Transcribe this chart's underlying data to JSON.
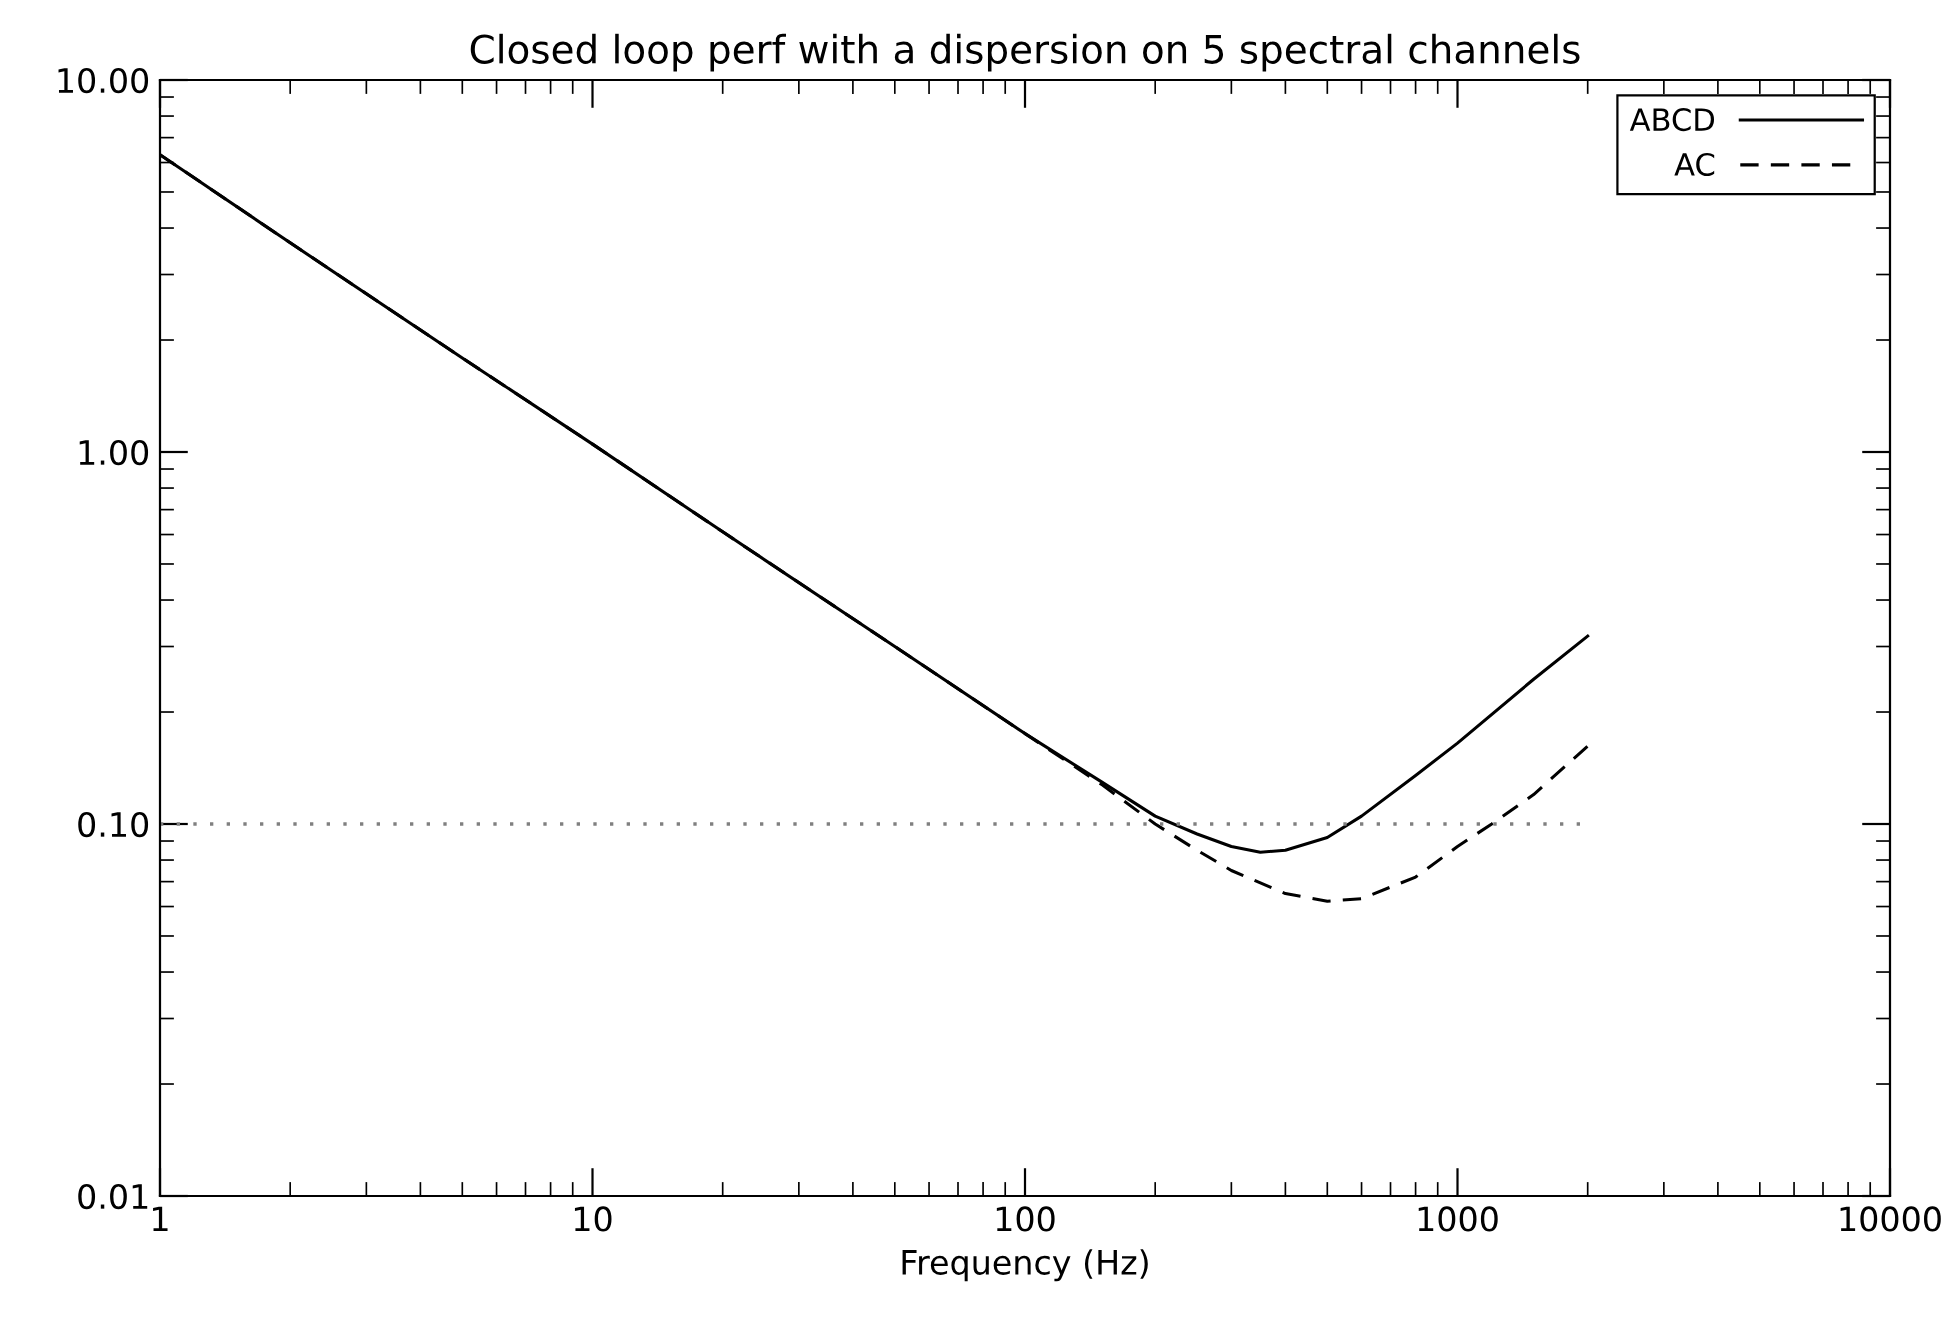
{
  "chart_data": {
    "type": "line",
    "title": "Closed loop perf with a dispersion on 5 spectral channels",
    "xlabel": "Frequency (Hz)",
    "log": "xy",
    "xlim": [
      1,
      10000
    ],
    "ylim": [
      0.01,
      10
    ],
    "xticks": [
      1,
      10,
      100,
      1000,
      10000
    ],
    "yticks": [
      {
        "value": 10,
        "label": "10.00"
      },
      {
        "value": 1,
        "label": "1.00"
      },
      {
        "value": 0.1,
        "label": "0.10"
      },
      {
        "value": 0.01,
        "label": "0.01"
      }
    ],
    "grid": false,
    "legend": "top right",
    "marker": "none",
    "ref_lines": [
      {
        "axis": "y",
        "value": 0.1,
        "color": "#808080",
        "line_style": "dotted"
      }
    ],
    "series": [
      {
        "name": "ABCD",
        "color": "#000000",
        "line_style": "solid",
        "x": [
          1,
          2,
          5,
          10,
          20,
          50,
          100,
          150,
          200,
          250,
          300,
          350,
          400,
          500,
          600,
          800,
          1000,
          1500,
          2000
        ],
        "values": [
          6.3,
          3.65,
          1.79,
          1.05,
          0.61,
          0.3,
          0.175,
          0.13,
          0.105,
          0.094,
          0.087,
          0.084,
          0.085,
          0.092,
          0.105,
          0.135,
          0.165,
          0.245,
          0.32
        ]
      },
      {
        "name": "AC",
        "color": "#000000",
        "line_style": "dashed",
        "x": [
          1,
          2,
          5,
          10,
          20,
          50,
          100,
          150,
          200,
          250,
          300,
          400,
          500,
          600,
          800,
          1000,
          1200,
          1500,
          2000
        ],
        "values": [
          6.3,
          3.65,
          1.79,
          1.05,
          0.61,
          0.3,
          0.175,
          0.128,
          0.1,
          0.085,
          0.075,
          0.065,
          0.062,
          0.063,
          0.072,
          0.087,
          0.1,
          0.12,
          0.162
        ]
      }
    ]
  }
}
